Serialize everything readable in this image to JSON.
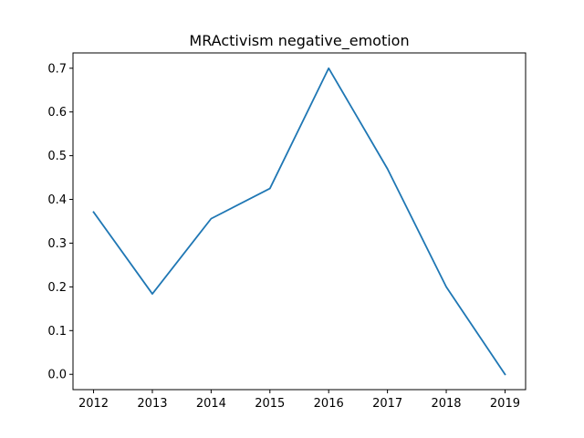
{
  "chart_data": {
    "type": "line",
    "title": "MRActivism negative_emotion",
    "xlabel": "",
    "ylabel": "",
    "x": [
      2012,
      2013,
      2014,
      2015,
      2016,
      2017,
      2018,
      2019
    ],
    "series": [
      {
        "values": [
          0.371,
          0.184,
          0.356,
          0.425,
          0.7,
          0.47,
          0.2,
          0.0
        ],
        "color": "#1f77b4"
      }
    ],
    "xlim": [
      2011.65,
      2019.35
    ],
    "ylim": [
      -0.035,
      0.735
    ],
    "xticks": [
      "2012",
      "2013",
      "2014",
      "2015",
      "2016",
      "2017",
      "2018",
      "2019"
    ],
    "yticks": [
      "0.0",
      "0.1",
      "0.2",
      "0.3",
      "0.4",
      "0.5",
      "0.6",
      "0.7"
    ],
    "grid": false,
    "legend": "none"
  }
}
